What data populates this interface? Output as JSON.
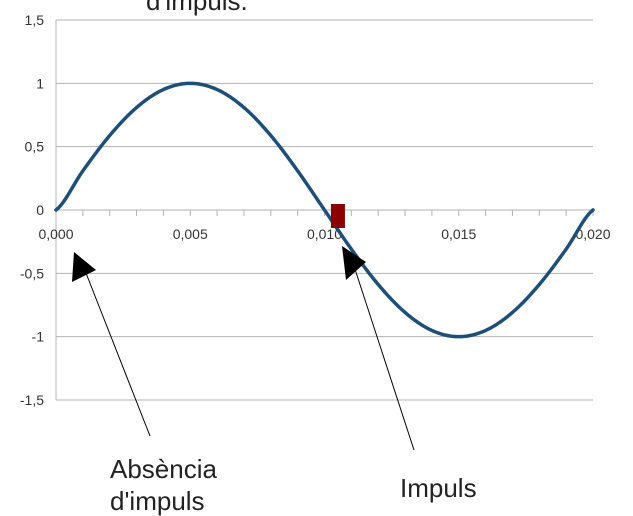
{
  "colors": {
    "series": "#1f4e79",
    "marker": "#8b0000",
    "grid": "#b3b3b3",
    "axis": "#b3b3b3",
    "arrow": "#000000"
  },
  "annotations": {
    "top_fragment": "d'impuls.",
    "absence_line1": "Absència",
    "absence_line2": "d'impuls",
    "impulse": "Impuls"
  },
  "chart_data": {
    "type": "line",
    "title": "",
    "xlabel": "",
    "ylabel": "",
    "xlim": [
      0,
      0.02
    ],
    "ylim": [
      -1.5,
      1.5
    ],
    "x_ticks": [
      "0,000",
      "0,005",
      "0,010",
      "0,015",
      "0,020"
    ],
    "y_ticks": [
      "1,5",
      "1",
      "0,5",
      "0",
      "-0,5",
      "-1",
      "-1,5"
    ],
    "grid": "horizontal",
    "legend": "none",
    "series": [
      {
        "x": [
          0,
          0.001,
          0.002,
          0.003,
          0.004,
          0.005,
          0.006,
          0.007,
          0.008,
          0.009,
          0.01,
          0.011,
          0.012,
          0.013,
          0.014,
          0.015,
          0.016,
          0.017,
          0.018,
          0.019,
          0.02
        ],
        "values": [
          0,
          0.309,
          0.588,
          0.809,
          0.951,
          1,
          0.951,
          0.809,
          0.588,
          0.309,
          0,
          -0.309,
          -0.588,
          -0.809,
          -0.951,
          -1,
          -0.951,
          -0.809,
          -0.588,
          -0.309,
          0
        ]
      }
    ],
    "impulse_marker": {
      "x": 0.0105,
      "y": 0
    }
  }
}
